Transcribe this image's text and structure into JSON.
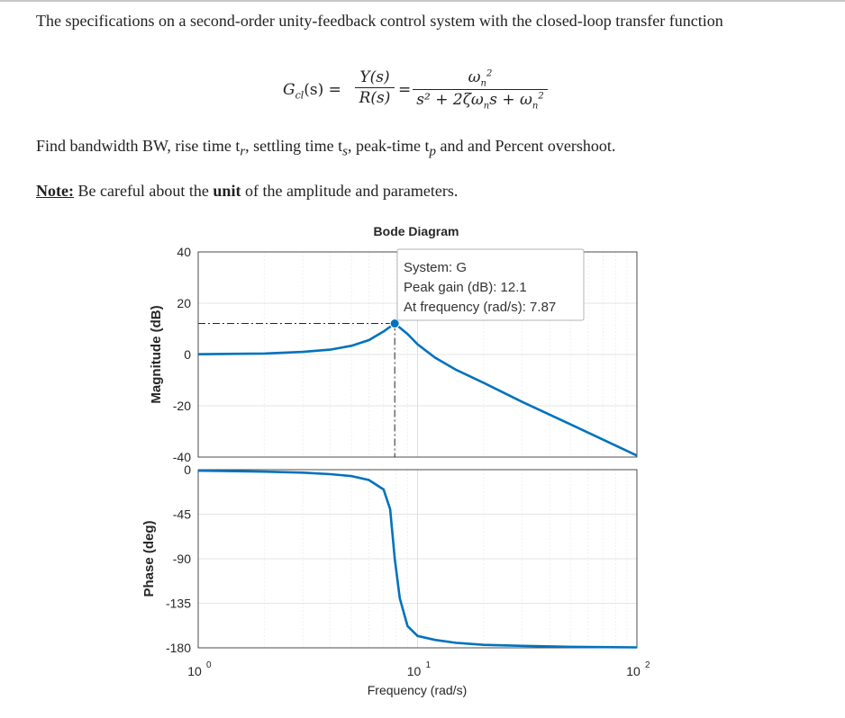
{
  "problem": {
    "intro": "The specifications on a second-order unity-feedback control system with the closed-loop transfer function",
    "equation": {
      "lhs": "G",
      "lhs_sub": "cl",
      "lhs_arg": "(s) =",
      "frac1_num": "Y(s)",
      "frac1_den": "R(s)",
      "equals": "=",
      "frac2_num": "ω",
      "frac2_num_sub": "n",
      "frac2_num_sup": "2",
      "frac2_den": "s² + 2ζω",
      "frac2_den_sub": "n",
      "frac2_den_rest": "s + ω",
      "frac2_den_sub2": "n",
      "frac2_den_sup2": "2"
    },
    "find_text": "Find bandwidth BW, rise time t",
    "find_sub_r": "r",
    "find_mid1": ", settling time t",
    "find_sub_s": "s",
    "find_mid2": ", peak-time t",
    "find_sub_p": "p",
    "find_end": " and and Percent overshoot.",
    "note_label": "Note:",
    "note_text_1": " Be careful about the ",
    "note_bold": "unit",
    "note_text_2": " of the amplitude and parameters."
  },
  "chart_data": {
    "type": "line",
    "title": "Bode Diagram",
    "xlabel": "Frequency (rad/s)",
    "x_scale": "log",
    "xlim": [
      1,
      100
    ],
    "x_tick_base": "10",
    "x_tick_exponents": [
      "0",
      "1",
      "2"
    ],
    "grid": true,
    "line_color": "#0072BD",
    "panels": [
      {
        "name": "magnitude",
        "ylabel": "Magnitude (dB)",
        "ylim": [
          -40,
          40
        ],
        "yticks": [
          "40",
          "20",
          "0",
          "-20",
          "-40"
        ],
        "x": [
          1,
          2,
          3,
          4,
          5,
          6,
          7,
          7.87,
          9,
          10,
          12,
          15,
          20,
          30,
          50,
          100
        ],
        "y": [
          0.1,
          0.4,
          1.0,
          1.9,
          3.4,
          5.6,
          9.0,
          12.1,
          8.0,
          4.0,
          -1.2,
          -6.0,
          -11.0,
          -18.5,
          -27.3,
          -39.4
        ]
      },
      {
        "name": "phase",
        "ylabel": "Phase (deg)",
        "ylim": [
          -180,
          0
        ],
        "yticks": [
          "0",
          "-45",
          "-90",
          "-135",
          "-180"
        ],
        "x": [
          1,
          2,
          3,
          4,
          5,
          6,
          7,
          7.5,
          7.87,
          8.3,
          9,
          10,
          12,
          15,
          20,
          30,
          50,
          100
        ],
        "y": [
          -1,
          -2,
          -3,
          -4.5,
          -6.5,
          -10.5,
          -20,
          -40,
          -90,
          -130,
          -158,
          -168,
          -172,
          -175,
          -177,
          -178,
          -179,
          -179.5
        ]
      }
    ],
    "datatip": {
      "line1": "System: G",
      "line2": "Peak gain (dB): 12.1",
      "line3": "At frequency (rad/s): 7.87",
      "x": 7.87,
      "y": 12.1
    }
  }
}
